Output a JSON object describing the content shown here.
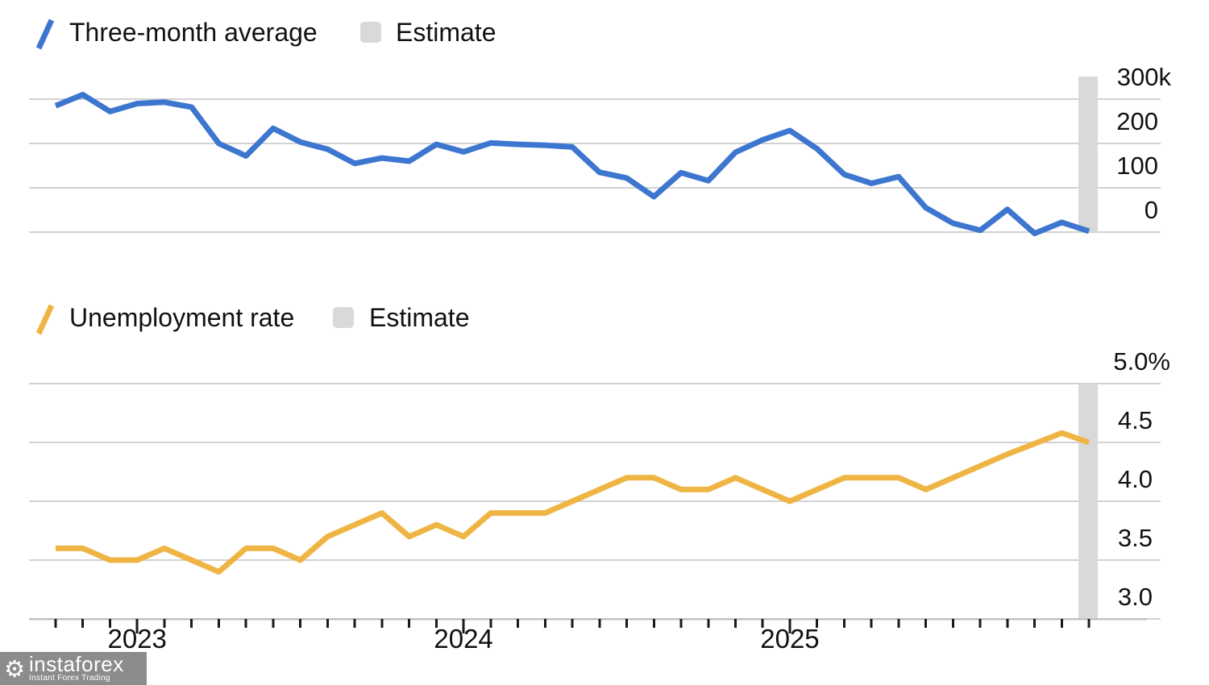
{
  "colors": {
    "payrolls_line": "#3d76cf",
    "unemployment_line": "#efb544",
    "estimate_fill": "#d9d9d9",
    "gridline": "#d2d2d2",
    "axis_line": "#c2c2c2",
    "tick": "#1a1a1a",
    "text": "#111111",
    "logo_bg": "rgba(124,124,124,0.88)",
    "logo_text": "#ffffff"
  },
  "legend_payrolls": {
    "series_label": "Three-month average",
    "estimate_label": "Estimate"
  },
  "legend_unemployment": {
    "series_label": "Unemployment rate",
    "estimate_label": "Estimate"
  },
  "x_axis": {
    "year_labels": [
      "2023",
      "2024",
      "2025"
    ]
  },
  "logo": {
    "brand": "instaforex",
    "tagline": "Instant Forex Trading",
    "gear_icon": "⚙"
  },
  "chart_data": [
    {
      "type": "line",
      "name": "payrolls-three-month-average",
      "series_label": "Three-month average",
      "unit": "thousands",
      "y_tick_labels": [
        "300k",
        "200",
        "100",
        "0"
      ],
      "y_tick_values": [
        300,
        200,
        100,
        0
      ],
      "ylim": [
        -20,
        330
      ],
      "grid": true,
      "legend_position": "top-left",
      "estimate_months": [
        "2025-12"
      ],
      "x_months": [
        "2022-10",
        "2022-11",
        "2022-12",
        "2023-01",
        "2023-02",
        "2023-03",
        "2023-04",
        "2023-05",
        "2023-06",
        "2023-07",
        "2023-08",
        "2023-09",
        "2023-10",
        "2023-11",
        "2023-12",
        "2024-01",
        "2024-02",
        "2024-03",
        "2024-04",
        "2024-05",
        "2024-06",
        "2024-07",
        "2024-08",
        "2024-09",
        "2024-10",
        "2024-11",
        "2024-12",
        "2025-01",
        "2025-02",
        "2025-03",
        "2025-04",
        "2025-05",
        "2025-06",
        "2025-07",
        "2025-08",
        "2025-09",
        "2025-10",
        "2025-11",
        "2025-12"
      ],
      "values": [
        285,
        310,
        272,
        290,
        293,
        282,
        200,
        172,
        234,
        203,
        187,
        155,
        167,
        160,
        198,
        181,
        201,
        198,
        196,
        192,
        135,
        122,
        80,
        134,
        116,
        180,
        208,
        229,
        188,
        130,
        110,
        125,
        55,
        20,
        4,
        51,
        -3,
        22,
        2
      ]
    },
    {
      "type": "line",
      "name": "unemployment-rate",
      "series_label": "Unemployment rate",
      "unit": "percent",
      "y_tick_labels": [
        "5.0%",
        "4.5",
        "4.0",
        "3.5",
        "3.0"
      ],
      "y_tick_values": [
        5.0,
        4.5,
        4.0,
        3.5,
        3.0
      ],
      "ylim": [
        2.9,
        5.1
      ],
      "grid": true,
      "legend_position": "top-left",
      "estimate_months": [
        "2025-12"
      ],
      "x_months": [
        "2022-10",
        "2022-11",
        "2022-12",
        "2023-01",
        "2023-02",
        "2023-03",
        "2023-04",
        "2023-05",
        "2023-06",
        "2023-07",
        "2023-08",
        "2023-09",
        "2023-10",
        "2023-11",
        "2023-12",
        "2024-01",
        "2024-02",
        "2024-03",
        "2024-04",
        "2024-05",
        "2024-06",
        "2024-07",
        "2024-08",
        "2024-09",
        "2024-10",
        "2024-11",
        "2024-12",
        "2025-01",
        "2025-02",
        "2025-03",
        "2025-04",
        "2025-05",
        "2025-06",
        "2025-07",
        "2025-08",
        "2025-09",
        "2025-10",
        "2025-11",
        "2025-12"
      ],
      "values": [
        3.6,
        3.6,
        3.5,
        3.5,
        3.6,
        3.5,
        3.4,
        3.6,
        3.6,
        3.5,
        3.7,
        3.8,
        3.9,
        3.7,
        3.8,
        3.7,
        3.9,
        3.9,
        3.9,
        4.0,
        4.1,
        4.2,
        4.2,
        4.1,
        4.1,
        4.2,
        4.1,
        4.0,
        4.1,
        4.2,
        4.2,
        4.2,
        4.1,
        4.2,
        4.3,
        4.4,
        4.49,
        4.58,
        4.5
      ]
    }
  ]
}
